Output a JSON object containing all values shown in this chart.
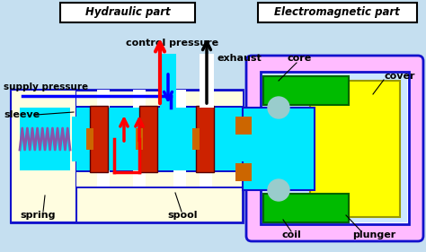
{
  "bg_color": "#c5dff0",
  "title_hydraulic": "Hydraulic part",
  "title_electromagnetic": "Electromagnetic part",
  "labels": {
    "supply_pressure": "supply pressure",
    "control_pressure": "control pressure",
    "exhaust": "exhaust",
    "sleeve": "sleeve",
    "spring": "spring",
    "spool": "spool",
    "core": "core",
    "cover": "cover",
    "coil": "coil",
    "plunger": "plunger"
  },
  "colors": {
    "cyan_fill": "#00e8ff",
    "yellow_fill": "#ffff00",
    "green_fill": "#00bb00",
    "beige_fill": "#fffde0",
    "pink_fill": "#ffbbff",
    "blue_outline": "#1111cc",
    "red_col": "#ff0000",
    "blue_col": "#0000ff",
    "dark_red": "#cc2200",
    "spring_col": "#8855aa",
    "gray_col": "#bbbbcc",
    "orange_brown": "#cc6600",
    "light_cyan": "#aaffff",
    "white": "#ffffff"
  }
}
